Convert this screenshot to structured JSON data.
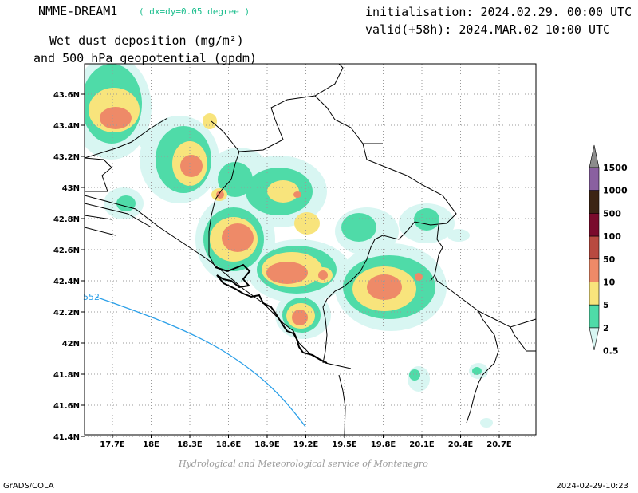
{
  "header": {
    "model": "NMME-DREAM1",
    "model_note": "( dx=dy=0.05 degree )",
    "init": "initialisation: 2024.02.29. 00:00 UTC",
    "valid": "valid(+58h): 2024.MAR.02 10:00 UTC",
    "variable_line1": "Wet dust deposition (mg/m²)",
    "variable_line2": "and 500 hPa geopotential (gpdm)"
  },
  "map": {
    "lon_ticks": [
      "17.7E",
      "18E",
      "18.3E",
      "18.6E",
      "18.9E",
      "19.2E",
      "19.5E",
      "19.8E",
      "20.1E",
      "20.4E",
      "20.7E"
    ],
    "lat_ticks": [
      "43.6N",
      "43.4N",
      "43.2N",
      "43N",
      "42.8N",
      "42.6N",
      "42.4N",
      "42.2N",
      "42N",
      "41.8N",
      "41.6N",
      "41.4N"
    ],
    "contour_label": "552",
    "grid": true
  },
  "colorbar": {
    "levels": [
      "0.5",
      "2",
      "5",
      "10",
      "50",
      "100",
      "500",
      "1000",
      "1500"
    ],
    "colors": [
      "#d8f6f2",
      "#4fdba8",
      "#f8e47c",
      "#ee8a68",
      "#b84a40",
      "#7a0b2c",
      "#3c2414",
      "#8a60a0",
      "#8c8c8c"
    ]
  },
  "palette": {
    "level_0_5": "#d8f6f2",
    "level_2": "#4fdba8",
    "level_5": "#f8e47c",
    "level_10": "#ee8a68",
    "contour": "#2a9fe8"
  },
  "footer": {
    "credit": "Hydrological and Meteorological service of Montenegro",
    "software": "GrADS/COLA",
    "timestamp": "2024-02-29-10:23"
  }
}
